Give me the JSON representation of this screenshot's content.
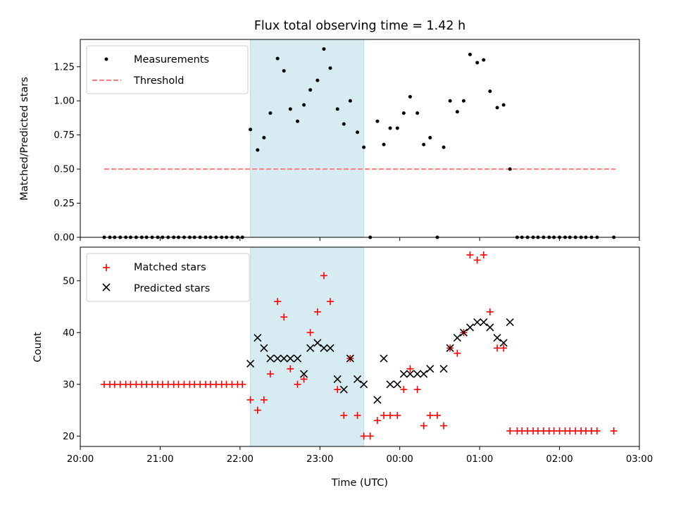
{
  "chart_data": [
    {
      "type": "scatter",
      "title": "Flux total observing time = 1.42 h",
      "xlabel": "",
      "ylabel": "Matched/Predicted stars",
      "xlim": [
        20.0,
        27.0
      ],
      "ylim": [
        0,
        1.45
      ],
      "x_unit": "hours UTC after 00:00 of first night (24 = 00:00 next day)",
      "y_ticks": [
        "0.00",
        "0.25",
        "0.50",
        "0.75",
        "1.00",
        "1.25"
      ],
      "y_tick_values": [
        0,
        0.25,
        0.5,
        0.75,
        1.0,
        1.25
      ],
      "grid": false,
      "legend_position": "top-left",
      "highlight_span": {
        "x_start": 22.13,
        "x_end": 23.55,
        "color": "#add8e6"
      },
      "series": [
        {
          "name": "Measurements",
          "marker": "dot",
          "color": "#000000",
          "points": [
            [
              20.3,
              0
            ],
            [
              20.37,
              0
            ],
            [
              20.43,
              0
            ],
            [
              20.5,
              0
            ],
            [
              20.57,
              0
            ],
            [
              20.63,
              0
            ],
            [
              20.7,
              0
            ],
            [
              20.77,
              0
            ],
            [
              20.83,
              0
            ],
            [
              20.9,
              0
            ],
            [
              20.97,
              0
            ],
            [
              21.03,
              0
            ],
            [
              21.1,
              0
            ],
            [
              21.17,
              0
            ],
            [
              21.23,
              0
            ],
            [
              21.3,
              0
            ],
            [
              21.37,
              0
            ],
            [
              21.43,
              0
            ],
            [
              21.5,
              0
            ],
            [
              21.57,
              0
            ],
            [
              21.63,
              0
            ],
            [
              21.7,
              0
            ],
            [
              21.77,
              0
            ],
            [
              21.83,
              0
            ],
            [
              21.9,
              0
            ],
            [
              21.97,
              0
            ],
            [
              22.03,
              0
            ],
            [
              22.13,
              0.79
            ],
            [
              22.22,
              0.64
            ],
            [
              22.3,
              0.73
            ],
            [
              22.38,
              0.91
            ],
            [
              22.47,
              1.31
            ],
            [
              22.55,
              1.22
            ],
            [
              22.63,
              0.94
            ],
            [
              22.72,
              0.85
            ],
            [
              22.8,
              0.97
            ],
            [
              22.88,
              1.08
            ],
            [
              22.97,
              1.15
            ],
            [
              23.05,
              1.38
            ],
            [
              23.13,
              1.24
            ],
            [
              23.22,
              0.94
            ],
            [
              23.3,
              0.83
            ],
            [
              23.38,
              1.0
            ],
            [
              23.47,
              0.77
            ],
            [
              23.55,
              0.66
            ],
            [
              23.63,
              0
            ],
            [
              23.72,
              0.85
            ],
            [
              23.8,
              0.68
            ],
            [
              23.88,
              0.8
            ],
            [
              23.97,
              0.8
            ],
            [
              24.05,
              0.91
            ],
            [
              24.13,
              1.03
            ],
            [
              24.22,
              0.91
            ],
            [
              24.3,
              0.68
            ],
            [
              24.38,
              0.73
            ],
            [
              24.47,
              0
            ],
            [
              24.55,
              0.66
            ],
            [
              24.63,
              1.0
            ],
            [
              24.72,
              0.92
            ],
            [
              24.8,
              1.0
            ],
            [
              24.88,
              1.34
            ],
            [
              24.97,
              1.28
            ],
            [
              25.05,
              1.3
            ],
            [
              25.13,
              1.07
            ],
            [
              25.22,
              0.95
            ],
            [
              25.3,
              0.97
            ],
            [
              25.38,
              0.5
            ],
            [
              25.47,
              0
            ],
            [
              25.53,
              0
            ],
            [
              25.6,
              0
            ],
            [
              25.67,
              0
            ],
            [
              25.73,
              0
            ],
            [
              25.8,
              0
            ],
            [
              25.87,
              0
            ],
            [
              25.93,
              0
            ],
            [
              26.0,
              0
            ],
            [
              26.07,
              0
            ],
            [
              26.13,
              0
            ],
            [
              26.2,
              0
            ],
            [
              26.27,
              0
            ],
            [
              26.33,
              0
            ],
            [
              26.4,
              0
            ],
            [
              26.47,
              0
            ],
            [
              26.68,
              0
            ]
          ]
        },
        {
          "name": "Threshold",
          "type": "line",
          "style": "dashed",
          "color": "#ff7f7f",
          "points": [
            [
              20.3,
              0.5
            ],
            [
              26.7,
              0.5
            ]
          ]
        }
      ]
    },
    {
      "type": "scatter",
      "title": "",
      "xlabel": "Time (UTC)",
      "ylabel": "Count",
      "xlim": [
        20.0,
        27.0
      ],
      "ylim": [
        18,
        56.5
      ],
      "x_ticks": [
        "20:00",
        "21:00",
        "22:00",
        "23:00",
        "00:00",
        "01:00",
        "02:00",
        "03:00"
      ],
      "x_tick_values": [
        20,
        21,
        22,
        23,
        24,
        25,
        26,
        27
      ],
      "y_ticks": [
        "20",
        "30",
        "40",
        "50"
      ],
      "y_tick_values": [
        20,
        30,
        40,
        50
      ],
      "grid": false,
      "legend_position": "top-left",
      "highlight_span": {
        "x_start": 22.13,
        "x_end": 23.55,
        "color": "#add8e6"
      },
      "series": [
        {
          "name": "Matched stars",
          "marker": "plus",
          "color": "#ff0000",
          "points": [
            [
              20.3,
              30
            ],
            [
              20.37,
              30
            ],
            [
              20.43,
              30
            ],
            [
              20.5,
              30
            ],
            [
              20.57,
              30
            ],
            [
              20.63,
              30
            ],
            [
              20.7,
              30
            ],
            [
              20.77,
              30
            ],
            [
              20.83,
              30
            ],
            [
              20.9,
              30
            ],
            [
              20.97,
              30
            ],
            [
              21.03,
              30
            ],
            [
              21.1,
              30
            ],
            [
              21.17,
              30
            ],
            [
              21.23,
              30
            ],
            [
              21.3,
              30
            ],
            [
              21.37,
              30
            ],
            [
              21.43,
              30
            ],
            [
              21.5,
              30
            ],
            [
              21.57,
              30
            ],
            [
              21.63,
              30
            ],
            [
              21.7,
              30
            ],
            [
              21.77,
              30
            ],
            [
              21.83,
              30
            ],
            [
              21.9,
              30
            ],
            [
              21.97,
              30
            ],
            [
              22.03,
              30
            ],
            [
              22.13,
              27
            ],
            [
              22.22,
              25
            ],
            [
              22.3,
              27
            ],
            [
              22.38,
              32
            ],
            [
              22.47,
              46
            ],
            [
              22.55,
              43
            ],
            [
              22.63,
              33
            ],
            [
              22.72,
              30
            ],
            [
              22.8,
              31
            ],
            [
              22.88,
              40
            ],
            [
              22.97,
              44
            ],
            [
              23.05,
              51
            ],
            [
              23.13,
              46
            ],
            [
              23.22,
              29
            ],
            [
              23.3,
              24
            ],
            [
              23.38,
              35
            ],
            [
              23.47,
              24
            ],
            [
              23.55,
              20
            ],
            [
              23.63,
              20
            ],
            [
              23.72,
              23
            ],
            [
              23.8,
              24
            ],
            [
              23.88,
              24
            ],
            [
              23.97,
              24
            ],
            [
              24.05,
              29
            ],
            [
              24.13,
              33
            ],
            [
              24.22,
              29
            ],
            [
              24.3,
              22
            ],
            [
              24.38,
              24
            ],
            [
              24.47,
              24
            ],
            [
              24.55,
              22
            ],
            [
              24.63,
              37
            ],
            [
              24.72,
              36
            ],
            [
              24.8,
              40
            ],
            [
              24.88,
              55
            ],
            [
              24.97,
              54
            ],
            [
              25.05,
              55
            ],
            [
              25.13,
              44
            ],
            [
              25.22,
              37
            ],
            [
              25.3,
              37
            ],
            [
              25.38,
              21
            ],
            [
              25.47,
              21
            ],
            [
              25.53,
              21
            ],
            [
              25.6,
              21
            ],
            [
              25.67,
              21
            ],
            [
              25.73,
              21
            ],
            [
              25.8,
              21
            ],
            [
              25.87,
              21
            ],
            [
              25.93,
              21
            ],
            [
              26.0,
              21
            ],
            [
              26.07,
              21
            ],
            [
              26.13,
              21
            ],
            [
              26.2,
              21
            ],
            [
              26.27,
              21
            ],
            [
              26.33,
              21
            ],
            [
              26.4,
              21
            ],
            [
              26.47,
              21
            ],
            [
              26.68,
              21
            ]
          ]
        },
        {
          "name": "Predicted stars",
          "marker": "x",
          "color": "#000000",
          "points": [
            [
              22.13,
              34
            ],
            [
              22.22,
              39
            ],
            [
              22.3,
              37
            ],
            [
              22.38,
              35
            ],
            [
              22.47,
              35
            ],
            [
              22.55,
              35
            ],
            [
              22.63,
              35
            ],
            [
              22.72,
              35
            ],
            [
              22.8,
              32
            ],
            [
              22.88,
              37
            ],
            [
              22.97,
              38
            ],
            [
              23.05,
              37
            ],
            [
              23.13,
              37
            ],
            [
              23.22,
              31
            ],
            [
              23.3,
              29
            ],
            [
              23.38,
              35
            ],
            [
              23.47,
              31
            ],
            [
              23.55,
              30
            ],
            [
              23.72,
              27
            ],
            [
              23.8,
              35
            ],
            [
              23.88,
              30
            ],
            [
              23.97,
              30
            ],
            [
              24.05,
              32
            ],
            [
              24.13,
              32
            ],
            [
              24.22,
              32
            ],
            [
              24.3,
              32
            ],
            [
              24.38,
              33
            ],
            [
              24.55,
              33
            ],
            [
              24.63,
              37
            ],
            [
              24.72,
              39
            ],
            [
              24.8,
              40
            ],
            [
              24.88,
              41
            ],
            [
              24.97,
              42
            ],
            [
              25.05,
              42
            ],
            [
              25.13,
              41
            ],
            [
              25.22,
              39
            ],
            [
              25.3,
              38
            ],
            [
              25.38,
              42
            ]
          ]
        }
      ]
    }
  ]
}
